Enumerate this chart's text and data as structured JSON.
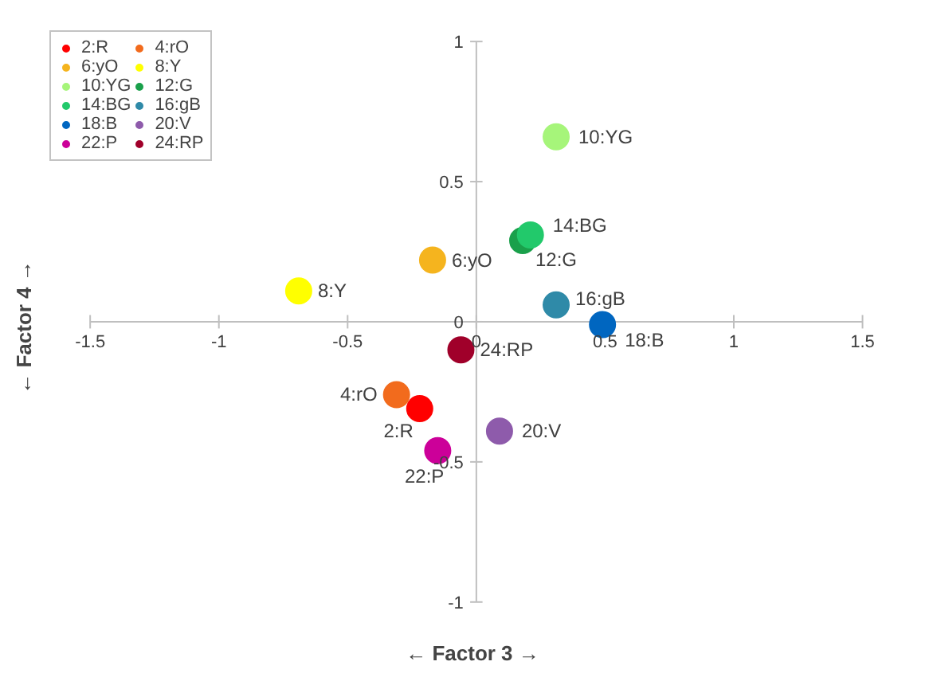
{
  "chart_data": {
    "type": "scatter",
    "xlabel": "← Factor 3 →",
    "ylabel": "← Factor 4 →",
    "xlim": [
      -1.5,
      1.5
    ],
    "ylim": [
      -1,
      1
    ],
    "xticks": [
      -1.5,
      -1,
      -0.5,
      0,
      0.5,
      1,
      1.5
    ],
    "yticks": [
      -1,
      -0.5,
      0,
      0.5,
      1
    ],
    "grid": false,
    "legend": "top left",
    "marker": "circle",
    "series": [
      {
        "name": "2:R",
        "color": "#ff0000",
        "x": [
          -0.22
        ],
        "values": [
          -0.31
        ]
      },
      {
        "name": "4:rO",
        "color": "#f26b1d",
        "x": [
          -0.31
        ],
        "values": [
          -0.26
        ]
      },
      {
        "name": "6:yO",
        "color": "#f5b41e",
        "x": [
          -0.17
        ],
        "values": [
          0.22
        ]
      },
      {
        "name": "8:Y",
        "color": "#ffff00",
        "x": [
          -0.69
        ],
        "values": [
          0.11
        ]
      },
      {
        "name": "10:YG",
        "color": "#a6f57a",
        "x": [
          0.31
        ],
        "values": [
          0.66
        ]
      },
      {
        "name": "12:G",
        "color": "#1aa04b",
        "x": [
          0.18
        ],
        "values": [
          0.29
        ]
      },
      {
        "name": "14:BG",
        "color": "#22c96b",
        "x": [
          0.21
        ],
        "values": [
          0.31
        ]
      },
      {
        "name": "16:gB",
        "color": "#2f8aa8",
        "x": [
          0.31
        ],
        "values": [
          0.06
        ]
      },
      {
        "name": "18:B",
        "color": "#0066c0",
        "x": [
          0.49
        ],
        "values": [
          -0.01
        ]
      },
      {
        "name": "20:V",
        "color": "#8e5bab",
        "x": [
          0.09
        ],
        "values": [
          -0.39
        ]
      },
      {
        "name": "22:P",
        "color": "#cc0099",
        "x": [
          -0.15
        ],
        "values": [
          -0.46
        ]
      },
      {
        "name": "24:RP",
        "color": "#a0002a",
        "x": [
          -0.06
        ],
        "values": [
          -0.1
        ]
      }
    ]
  }
}
